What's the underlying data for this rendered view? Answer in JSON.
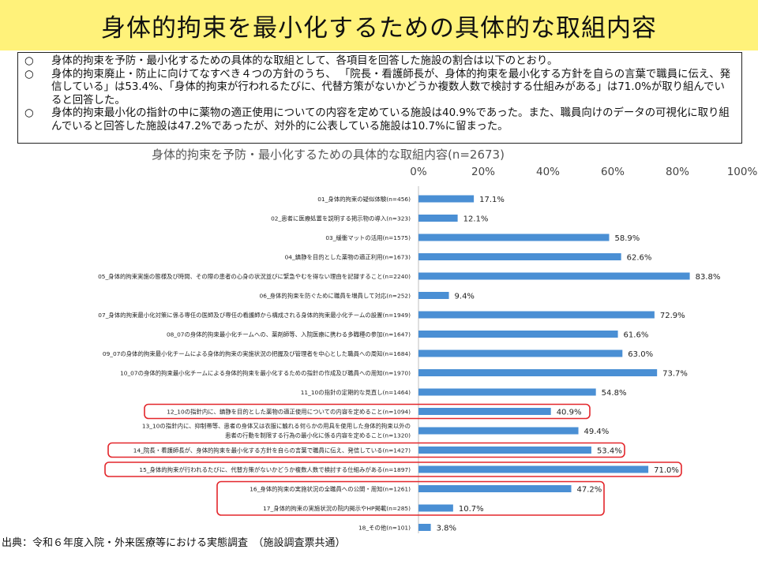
{
  "page": {
    "title": "身体的拘束を最小化するための具体的な取組内容",
    "bullet_mark": "○",
    "bullets": [
      "身体的拘束を予防・最小化するための具体的な取組として、各項目を回答した施設の割合は以下のとおり。",
      "身体的拘束廃止・防止に向けてなすべき４つの方針のうち、 「院長・看護師長が、身体的拘束を最小化する方針を自らの言葉で職員に伝え、発信している」は53.4%、「身体的拘束が行われるたびに、代替方策がないかどうか複数人数で検討する仕組みがある」は71.0%が取り組んでいると回答した。",
      "身体的拘束最小化の指針の中に薬物の適正使用についての内容を定めている施設は40.9%であった。また、職員向けのデータの可視化に取り組んでいると回答した施設は47.2%であったが、対外的に公表している施設は10.7%に留まった。"
    ],
    "source": "出典：令和６年度入院・外来医療等における実態調査　（施設調査票共通）"
  },
  "chart_data": {
    "type": "bar",
    "orientation": "horizontal",
    "title": "身体的拘束を予防・最小化するための具体的な取組内容(n=2673)",
    "xlim": [
      0,
      100
    ],
    "ticks": [
      "0%",
      "20%",
      "40%",
      "60%",
      "80%",
      "100%"
    ],
    "bar_color": "#4a8fd4",
    "highlight_color": "#e3262b",
    "categories": [
      [
        "01_身体的拘束の疑似体験(n=456)"
      ],
      [
        "02_患者に医療処置を説明する掲示物の導入(n=323)"
      ],
      [
        "03_緩衝マットの活用(n=1575)"
      ],
      [
        "04_鎮静を目的とした薬物の適正利用(n=1673)"
      ],
      [
        "05_身体的拘束実施の態様及び時間、その際の患者の心身の状況並びに緊急やむを得ない理由を記録すること(n=2240)"
      ],
      [
        "06_身体的拘束を防ぐために職員を増員して対応(n=252)"
      ],
      [
        "07_身体的拘束最小化対策に係る専任の医師及び専任の看護師から構成される身体的拘束最小化チームの設置(n=1949)"
      ],
      [
        "08_07の身体的拘束最小化チームへの、薬剤師等、入院医療に携わる多職種の参加(n=1647)"
      ],
      [
        "09_07の身体的拘束最小化チームによる身体的拘束の実施状況の把握及び管理者を中心とした職員への周知(n=1684)"
      ],
      [
        "10_07の身体的拘束最小化チームによる身体的拘束を最小化するための指針の作成及び職員への周知(n=1970)"
      ],
      [
        "11_10の指針の定期的な見直し(n=1464)"
      ],
      [
        "12_10の指針内に、鎮静を目的とした薬物の適正使用についての内容を定めること(n=1094)"
      ],
      [
        "13_10の指針内に、抑制帯等、患者の身体又は衣服に触れる何らかの用具を使用した身体的拘束以外の",
        "患者の行動を制限する行為の最小化に係る内容を定めること(n=1320)"
      ],
      [
        "14_院長・看護師長が、身体的拘束を最小化する方針を自らの言葉で職員に伝え、発信している(n=1427)"
      ],
      [
        "15_身体的拘束が行われるたびに、代替方策がないかどうか複数人数で検討する仕組みがある(n=1897)"
      ],
      [
        "16_身体的拘束の実施状況の全職員への公開・周知(n=1261)"
      ],
      [
        "17_身体的拘束の実施状況の院内掲示やHP掲載(n=285)"
      ],
      [
        "18_その他(n=101)"
      ]
    ],
    "values": [
      17.1,
      12.1,
      58.9,
      62.6,
      83.8,
      9.4,
      72.9,
      61.6,
      63.0,
      73.7,
      54.8,
      40.9,
      49.4,
      53.4,
      71.0,
      47.2,
      10.7,
      3.8
    ],
    "value_labels": [
      "17.1%",
      "12.1%",
      "58.9%",
      "62.6%",
      "83.8%",
      "9.4%",
      "72.9%",
      "61.6%",
      "63.0%",
      "73.7%",
      "54.8%",
      "40.9%",
      "49.4%",
      "53.4%",
      "71.0%",
      "47.2%",
      "10.7%",
      "3.8%"
    ],
    "highlighted_groups": [
      [
        11
      ],
      [
        13
      ],
      [
        14
      ],
      [
        15,
        16
      ]
    ]
  }
}
